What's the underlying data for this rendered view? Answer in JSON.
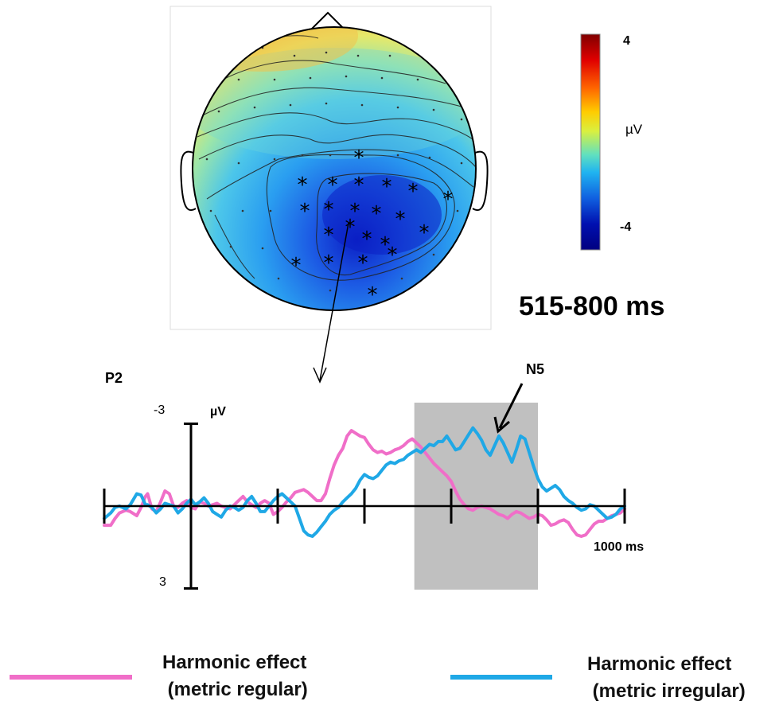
{
  "topomap": {
    "time_window": "515-800 ms",
    "colorbar": {
      "max_label": "4",
      "unit_label": "µV",
      "min_label": "-4",
      "colors": [
        "#800000",
        "#e00000",
        "#ff6600",
        "#ffcc00",
        "#d9f040",
        "#60e0c0",
        "#20b4f0",
        "#1060e0",
        "#0010b0",
        "#000080"
      ]
    },
    "significant_marker": "*"
  },
  "erp": {
    "electrode_label": "P2",
    "component_label": "N5",
    "y_unit_label": "µV",
    "y_top_tick_label": "-3",
    "y_bottom_tick_label": "3",
    "x_end_label": "1000 ms",
    "highlight_window_ms": [
      515,
      800
    ]
  },
  "legend": [
    {
      "label": "Harmonic effect\n (metric regular)",
      "color": "#f06ec8"
    },
    {
      "label": "Harmonic effect\n (metric irregular)",
      "color": "#1fa8e6"
    }
  ],
  "chart_data": {
    "type": "line",
    "title": "",
    "xlabel": "1000 ms",
    "ylabel": "µV",
    "xlim": [
      -200,
      1000
    ],
    "ylim": [
      -3,
      3
    ],
    "y_inverted": true,
    "ticks_x": [
      -200,
      0,
      200,
      400,
      600,
      800,
      1000
    ],
    "series": [
      {
        "name": "Harmonic effect (metric regular)",
        "color": "#f06ec8",
        "x": [
          -200,
          -185,
          -175,
          -165,
          -150,
          -140,
          -125,
          -115,
          -105,
          -100,
          -90,
          -80,
          -70,
          -60,
          -50,
          -40,
          -30,
          -20,
          -10,
          0,
          10,
          20,
          30,
          40,
          50,
          60,
          70,
          80,
          90,
          100,
          110,
          120,
          130,
          140,
          150,
          160,
          170,
          180,
          190,
          200,
          210,
          220,
          230,
          240,
          250,
          260,
          270,
          280,
          290,
          300,
          310,
          320,
          330,
          340,
          350,
          360,
          370,
          380,
          390,
          400,
          410,
          420,
          430,
          440,
          450,
          460,
          470,
          480,
          490,
          500,
          510,
          520,
          530,
          540,
          550,
          560,
          570,
          580,
          590,
          600,
          610,
          620,
          630,
          640,
          650,
          660,
          670,
          680,
          690,
          700,
          710,
          720,
          730,
          740,
          750,
          760,
          770,
          780,
          790,
          800,
          810,
          820,
          830,
          840,
          850,
          860,
          870,
          880,
          890,
          900,
          910,
          920,
          930,
          940,
          950,
          960,
          970,
          980,
          990,
          1000
        ],
        "y": [
          0.7,
          0.7,
          0.45,
          0.25,
          0.15,
          0.2,
          0.35,
          0.05,
          -0.35,
          -0.45,
          0.1,
          0.2,
          -0.15,
          -0.55,
          -0.45,
          0.0,
          0.05,
          -0.1,
          -0.2,
          0.05,
          0.1,
          -0.15,
          -0.1,
          0.0,
          -0.05,
          -0.1,
          0.0,
          0.05,
          0.1,
          -0.05,
          -0.2,
          -0.35,
          -0.15,
          -0.05,
          0.05,
          -0.1,
          -0.2,
          -0.1,
          0.3,
          0.2,
          0.05,
          -0.15,
          -0.3,
          -0.5,
          -0.55,
          -0.6,
          -0.5,
          -0.35,
          -0.2,
          -0.2,
          -0.45,
          -1.0,
          -1.5,
          -1.85,
          -2.1,
          -2.55,
          -2.75,
          -2.65,
          -2.55,
          -2.5,
          -2.25,
          -2.05,
          -1.95,
          -2.0,
          -1.9,
          -1.95,
          -2.05,
          -2.1,
          -2.2,
          -2.35,
          -2.45,
          -2.3,
          -2.15,
          -1.95,
          -1.75,
          -1.55,
          -1.4,
          -1.25,
          -1.1,
          -0.9,
          -0.55,
          -0.25,
          -0.05,
          0.1,
          0.15,
          0.05,
          0.0,
          0.05,
          0.1,
          0.2,
          0.3,
          0.35,
          0.45,
          0.3,
          0.2,
          0.25,
          0.35,
          0.45,
          0.4,
          0.3,
          0.35,
          0.5,
          0.7,
          0.65,
          0.55,
          0.5,
          0.6,
          0.85,
          1.05,
          1.1,
          1.05,
          0.85,
          0.65,
          0.55,
          0.55,
          0.45,
          0.35,
          0.3,
          0.25,
          0.1
        ]
      },
      {
        "name": "Harmonic effect (metric irregular)",
        "color": "#1fa8e6",
        "x": [
          -200,
          -185,
          -175,
          -165,
          -150,
          -140,
          -125,
          -115,
          -105,
          -100,
          -90,
          -80,
          -70,
          -60,
          -50,
          -40,
          -30,
          -20,
          -10,
          0,
          10,
          20,
          30,
          40,
          50,
          60,
          70,
          80,
          90,
          100,
          110,
          120,
          130,
          140,
          150,
          160,
          170,
          180,
          190,
          200,
          210,
          220,
          230,
          240,
          250,
          260,
          270,
          280,
          290,
          300,
          310,
          320,
          330,
          340,
          350,
          360,
          370,
          380,
          390,
          400,
          410,
          420,
          430,
          440,
          450,
          460,
          470,
          480,
          490,
          500,
          510,
          520,
          530,
          540,
          550,
          560,
          570,
          580,
          590,
          600,
          610,
          620,
          630,
          640,
          650,
          660,
          670,
          680,
          690,
          700,
          710,
          720,
          730,
          740,
          750,
          760,
          770,
          780,
          790,
          800,
          810,
          820,
          830,
          840,
          850,
          860,
          870,
          880,
          890,
          900,
          910,
          920,
          930,
          940,
          950,
          960,
          970,
          980,
          990,
          1000
        ],
        "y": [
          0.45,
          0.25,
          0.05,
          0.0,
          0.1,
          -0.05,
          -0.45,
          -0.4,
          -0.05,
          -0.05,
          0.05,
          0.25,
          0.1,
          -0.1,
          -0.05,
          0.0,
          0.25,
          0.1,
          -0.1,
          -0.25,
          -0.05,
          -0.15,
          -0.3,
          -0.1,
          0.2,
          0.3,
          0.4,
          0.15,
          0.0,
          0.05,
          0.15,
          0.05,
          -0.2,
          -0.35,
          -0.1,
          0.2,
          0.2,
          0.0,
          -0.2,
          -0.35,
          -0.45,
          -0.3,
          -0.15,
          0.0,
          0.45,
          0.9,
          1.05,
          1.1,
          0.95,
          0.75,
          0.55,
          0.3,
          0.15,
          0.05,
          -0.15,
          -0.3,
          -0.45,
          -0.65,
          -0.95,
          -1.15,
          -1.05,
          -1.0,
          -1.1,
          -1.3,
          -1.5,
          -1.6,
          -1.55,
          -1.65,
          -1.7,
          -1.85,
          -1.95,
          -2.05,
          -1.95,
          -2.1,
          -2.25,
          -2.2,
          -2.35,
          -2.35,
          -2.55,
          -2.3,
          -2.05,
          -2.1,
          -2.35,
          -2.6,
          -2.85,
          -2.65,
          -2.4,
          -2.05,
          -1.85,
          -2.2,
          -2.55,
          -2.3,
          -1.95,
          -1.6,
          -2.05,
          -2.55,
          -2.45,
          -1.95,
          -1.45,
          -1.0,
          -0.7,
          -0.55,
          -0.65,
          -0.75,
          -0.6,
          -0.35,
          -0.2,
          -0.1,
          0.05,
          0.15,
          0.1,
          -0.05,
          0.0,
          0.15,
          0.3,
          0.45,
          0.4,
          0.3,
          0.1,
          0.0
        ]
      }
    ]
  }
}
